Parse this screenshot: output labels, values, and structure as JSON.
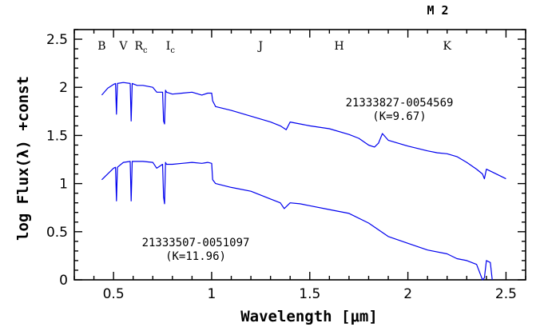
{
  "chart_data": {
    "type": "line",
    "title": "M 2",
    "xlabel": "Wavelength [μm]",
    "ylabel": "log Flux(λ) +const",
    "xlim": [
      0.3,
      2.6
    ],
    "ylim": [
      0,
      2.6
    ],
    "x_ticks": [
      "0.5",
      "1",
      "1.5",
      "2",
      "2.5"
    ],
    "y_ticks": [
      "0",
      "0.5",
      "1",
      "1.5",
      "2",
      "2.5"
    ],
    "bands": [
      {
        "label": "B",
        "x": 0.44
      },
      {
        "label": "V",
        "x": 0.55
      },
      {
        "label": "R",
        "sub": "c",
        "x": 0.64
      },
      {
        "label": "I",
        "sub": "c",
        "x": 0.79
      },
      {
        "label": "J",
        "x": 1.25
      },
      {
        "label": "H",
        "x": 1.65
      },
      {
        "label": "K",
        "x": 2.2
      }
    ],
    "annotations": [
      {
        "line1": "21333827-0054569",
        "line2": "(K=9.67)"
      },
      {
        "line1": "21333507-0051097",
        "line2": "(K=11.96)"
      }
    ],
    "series": [
      {
        "x": [
          0.44,
          0.47,
          0.5,
          0.51,
          0.515,
          0.52,
          0.55,
          0.585,
          0.59,
          0.595,
          0.62,
          0.65,
          0.7,
          0.72,
          0.75,
          0.755,
          0.76,
          0.765,
          0.77,
          0.8,
          0.85,
          0.9,
          0.95,
          0.98,
          1.0,
          1.005,
          1.02,
          1.1,
          1.2,
          1.3,
          1.35,
          1.38,
          1.4,
          1.45,
          1.5,
          1.6,
          1.7,
          1.75,
          1.8,
          1.83,
          1.85,
          1.87,
          1.9,
          2.0,
          2.1,
          2.15,
          2.2,
          2.25,
          2.3,
          2.35,
          2.38,
          2.39,
          2.4,
          2.45,
          2.5
        ],
        "y": [
          1.92,
          1.99,
          2.03,
          2.04,
          1.72,
          2.04,
          2.05,
          2.04,
          1.65,
          2.04,
          2.02,
          2.02,
          2.0,
          1.95,
          1.95,
          1.65,
          1.62,
          1.97,
          1.95,
          1.93,
          1.94,
          1.95,
          1.92,
          1.94,
          1.94,
          1.86,
          1.8,
          1.76,
          1.7,
          1.64,
          1.6,
          1.56,
          1.64,
          1.62,
          1.6,
          1.57,
          1.51,
          1.47,
          1.4,
          1.38,
          1.42,
          1.52,
          1.45,
          1.39,
          1.34,
          1.32,
          1.31,
          1.28,
          1.22,
          1.15,
          1.1,
          1.05,
          1.15,
          1.1,
          1.05
        ]
      },
      {
        "x": [
          0.44,
          0.47,
          0.5,
          0.51,
          0.515,
          0.52,
          0.55,
          0.585,
          0.59,
          0.595,
          0.62,
          0.65,
          0.7,
          0.72,
          0.75,
          0.755,
          0.76,
          0.765,
          0.77,
          0.8,
          0.85,
          0.9,
          0.95,
          0.98,
          1.0,
          1.005,
          1.02,
          1.1,
          1.2,
          1.3,
          1.35,
          1.37,
          1.4,
          1.45,
          1.5,
          1.6,
          1.7,
          1.8,
          1.9,
          2.0,
          2.1,
          2.2,
          2.25,
          2.3,
          2.35,
          2.38,
          2.39,
          2.4,
          2.42,
          2.43
        ],
        "y": [
          1.04,
          1.1,
          1.16,
          1.17,
          0.82,
          1.17,
          1.22,
          1.23,
          0.82,
          1.23,
          1.23,
          1.23,
          1.22,
          1.16,
          1.2,
          0.86,
          0.79,
          1.22,
          1.2,
          1.2,
          1.21,
          1.22,
          1.21,
          1.22,
          1.21,
          1.04,
          1.0,
          0.96,
          0.92,
          0.84,
          0.8,
          0.74,
          0.8,
          0.79,
          0.77,
          0.73,
          0.69,
          0.59,
          0.45,
          0.38,
          0.31,
          0.27,
          0.22,
          0.2,
          0.16,
          0.0,
          0.02,
          0.2,
          0.18,
          0.0
        ]
      }
    ]
  }
}
